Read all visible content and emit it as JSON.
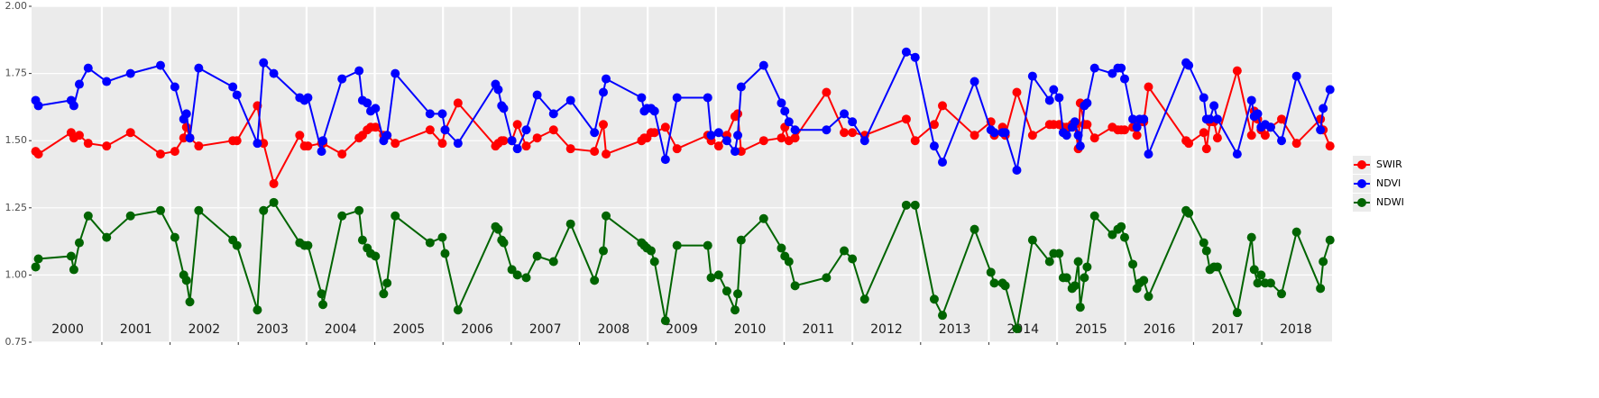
{
  "chart_data": {
    "type": "line",
    "x": [
      2000.03,
      2000.07,
      2000.55,
      2000.59,
      2000.67,
      2000.8,
      2001.07,
      2001.42,
      2001.86,
      2002.07,
      2002.2,
      2002.24,
      2002.29,
      2002.42,
      2002.92,
      2002.98,
      2003.28,
      2003.37,
      2003.52,
      2003.9,
      2003.97,
      2004.02,
      2004.22,
      2004.24,
      2004.52,
      2004.77,
      2004.82,
      2004.89,
      2004.94,
      2005.01,
      2005.13,
      2005.18,
      2005.3,
      2005.81,
      2005.99,
      2006.03,
      2006.22,
      2006.77,
      2006.81,
      2006.86,
      2006.89,
      2007.01,
      2007.09,
      2007.22,
      2007.38,
      2007.62,
      2007.87,
      2008.22,
      2008.35,
      2008.39,
      2008.91,
      2008.95,
      2008.99,
      2009.05,
      2009.1,
      2009.26,
      2009.43,
      2009.88,
      2009.93,
      2010.04,
      2010.16,
      2010.28,
      2010.32,
      2010.37,
      2010.7,
      2010.96,
      2011.01,
      2011.07,
      2011.16,
      2011.62,
      2011.88,
      2012.0,
      2012.18,
      2012.79,
      2012.92,
      2013.2,
      2013.32,
      2013.79,
      2014.03,
      2014.08,
      2014.2,
      2014.24,
      2014.41,
      2014.64,
      2014.89,
      2014.95,
      2015.03,
      2015.09,
      2015.14,
      2015.22,
      2015.26,
      2015.31,
      2015.34,
      2015.4,
      2015.44,
      2015.55,
      2015.81,
      2015.89,
      2015.94,
      2015.99,
      2016.11,
      2016.17,
      2016.21,
      2016.27,
      2016.34,
      2016.89,
      2016.93,
      2017.15,
      2017.19,
      2017.24,
      2017.3,
      2017.35,
      2017.64,
      2017.85,
      2017.89,
      2017.94,
      2017.99,
      2018.05,
      2018.13,
      2018.29,
      2018.51,
      2018.86,
      2018.9,
      2019.0
    ],
    "series": [
      {
        "name": "SWIR",
        "color": "#ff0000",
        "values": [
          1.46,
          1.45,
          1.53,
          1.51,
          1.52,
          1.49,
          1.48,
          1.53,
          1.45,
          1.46,
          1.51,
          1.55,
          1.51,
          1.48,
          1.5,
          1.5,
          1.63,
          1.49,
          1.34,
          1.52,
          1.48,
          1.48,
          1.49,
          1.49,
          1.45,
          1.51,
          1.52,
          1.54,
          1.55,
          1.55,
          1.52,
          1.52,
          1.49,
          1.54,
          1.49,
          1.54,
          1.64,
          1.48,
          1.49,
          1.5,
          1.5,
          1.5,
          1.56,
          1.48,
          1.51,
          1.54,
          1.47,
          1.46,
          1.56,
          1.45,
          1.5,
          1.51,
          1.51,
          1.53,
          1.53,
          1.55,
          1.47,
          1.52,
          1.5,
          1.48,
          1.52,
          1.59,
          1.6,
          1.46,
          1.5,
          1.51,
          1.55,
          1.5,
          1.51,
          1.68,
          1.53,
          1.53,
          1.52,
          1.58,
          1.5,
          1.56,
          1.63,
          1.52,
          1.57,
          1.52,
          1.55,
          1.52,
          1.68,
          1.52,
          1.56,
          1.56,
          1.56,
          1.55,
          1.55,
          1.56,
          1.56,
          1.47,
          1.64,
          1.56,
          1.56,
          1.51,
          1.55,
          1.54,
          1.54,
          1.54,
          1.55,
          1.52,
          1.57,
          1.57,
          1.7,
          1.5,
          1.49,
          1.53,
          1.47,
          1.57,
          1.57,
          1.51,
          1.76,
          1.52,
          1.61,
          1.58,
          1.54,
          1.52,
          1.55,
          1.58,
          1.49,
          1.58,
          1.54,
          1.48
        ]
      },
      {
        "name": "NDVI",
        "color": "#0000ff",
        "values": [
          1.65,
          1.63,
          1.65,
          1.63,
          1.71,
          1.77,
          1.72,
          1.75,
          1.78,
          1.7,
          1.58,
          1.6,
          1.51,
          1.77,
          1.7,
          1.67,
          1.49,
          1.79,
          1.75,
          1.66,
          1.65,
          1.66,
          1.46,
          1.5,
          1.73,
          1.76,
          1.65,
          1.64,
          1.61,
          1.62,
          1.5,
          1.52,
          1.75,
          1.6,
          1.6,
          1.54,
          1.49,
          1.71,
          1.69,
          1.63,
          1.62,
          1.5,
          1.47,
          1.54,
          1.67,
          1.6,
          1.65,
          1.53,
          1.68,
          1.73,
          1.66,
          1.61,
          1.62,
          1.62,
          1.61,
          1.43,
          1.66,
          1.66,
          1.52,
          1.53,
          1.5,
          1.46,
          1.52,
          1.7,
          1.78,
          1.64,
          1.61,
          1.57,
          1.54,
          1.54,
          1.6,
          1.57,
          1.5,
          1.83,
          1.81,
          1.48,
          1.42,
          1.72,
          1.54,
          1.53,
          1.53,
          1.53,
          1.39,
          1.74,
          1.65,
          1.69,
          1.66,
          1.53,
          1.52,
          1.55,
          1.57,
          1.52,
          1.48,
          1.63,
          1.64,
          1.77,
          1.75,
          1.77,
          1.77,
          1.73,
          1.58,
          1.55,
          1.58,
          1.58,
          1.45,
          1.79,
          1.78,
          1.66,
          1.58,
          1.58,
          1.63,
          1.58,
          1.45,
          1.65,
          1.59,
          1.6,
          1.55,
          1.56,
          1.55,
          1.5,
          1.74,
          1.54,
          1.62,
          1.69
        ]
      },
      {
        "name": "NDWI",
        "color": "#006400",
        "values": [
          1.03,
          1.06,
          1.07,
          1.02,
          1.12,
          1.22,
          1.14,
          1.22,
          1.24,
          1.14,
          1.0,
          0.98,
          0.9,
          1.24,
          1.13,
          1.11,
          0.87,
          1.24,
          1.27,
          1.12,
          1.11,
          1.11,
          0.93,
          0.89,
          1.22,
          1.24,
          1.13,
          1.1,
          1.08,
          1.07,
          0.93,
          0.97,
          1.22,
          1.12,
          1.14,
          1.08,
          0.87,
          1.18,
          1.17,
          1.13,
          1.12,
          1.02,
          1.0,
          0.99,
          1.07,
          1.05,
          1.19,
          0.98,
          1.09,
          1.22,
          1.12,
          1.11,
          1.1,
          1.09,
          1.05,
          0.83,
          1.11,
          1.11,
          0.99,
          1.0,
          0.94,
          0.87,
          0.93,
          1.13,
          1.21,
          1.1,
          1.07,
          1.05,
          0.96,
          0.99,
          1.09,
          1.06,
          0.91,
          1.26,
          1.26,
          0.91,
          0.85,
          1.17,
          1.01,
          0.97,
          0.97,
          0.96,
          0.8,
          1.13,
          1.05,
          1.08,
          1.08,
          0.99,
          0.99,
          0.95,
          0.96,
          1.05,
          0.88,
          0.99,
          1.03,
          1.22,
          1.15,
          1.17,
          1.18,
          1.14,
          1.04,
          0.95,
          0.97,
          0.98,
          0.92,
          1.24,
          1.23,
          1.12,
          1.09,
          1.02,
          1.03,
          1.03,
          0.86,
          1.14,
          1.02,
          0.97,
          1.0,
          0.97,
          0.97,
          0.93,
          1.16,
          0.95,
          1.05,
          1.13
        ]
      }
    ],
    "xlim": [
      1999.97,
      2019.03
    ],
    "xticks": [
      2001,
      2002,
      2003,
      2004,
      2005,
      2006,
      2007,
      2008,
      2009,
      2010,
      2011,
      2012,
      2013,
      2014,
      2015,
      2016,
      2017,
      2018
    ],
    "ylim": [
      0.75,
      2.0
    ],
    "yticks": [
      0.75,
      {
        "value": 1,
        "label": "1.00"
      },
      1.25,
      {
        "value": 1.5,
        "label": "1.50"
      },
      1.75,
      {
        "value": 2,
        "label": "2.00"
      }
    ],
    "year_labels": [
      {
        "text": "2000",
        "x": 2000.5
      },
      {
        "text": "2001",
        "x": 2001.5
      },
      {
        "text": "2002",
        "x": 2002.5
      },
      {
        "text": "2003",
        "x": 2003.5
      },
      {
        "text": "2004",
        "x": 2004.5
      },
      {
        "text": "2005",
        "x": 2005.5
      },
      {
        "text": "2006",
        "x": 2006.5
      },
      {
        "text": "2007",
        "x": 2007.5
      },
      {
        "text": "2008",
        "x": 2008.5
      },
      {
        "text": "2009",
        "x": 2009.5
      },
      {
        "text": "2010",
        "x": 2010.5
      },
      {
        "text": "2011",
        "x": 2011.5
      },
      {
        "text": "2012",
        "x": 2012.5
      },
      {
        "text": "2013",
        "x": 2013.5
      },
      {
        "text": "2014",
        "x": 2014.5
      },
      {
        "text": "2015",
        "x": 2015.5
      },
      {
        "text": "2016",
        "x": 2016.5
      },
      {
        "text": "2017",
        "x": 2017.5
      },
      {
        "text": "2018",
        "x": 2018.5
      }
    ],
    "grid": true,
    "legend": "right"
  }
}
